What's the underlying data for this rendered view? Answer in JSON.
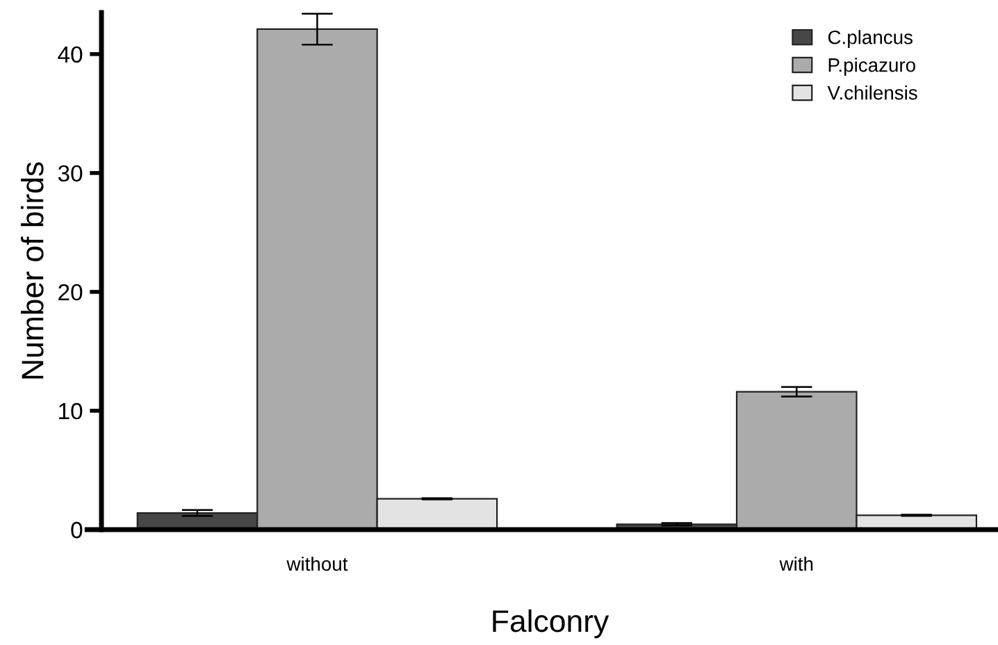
{
  "chart_data": {
    "type": "bar",
    "xlabel": "Falconry",
    "ylabel": "Number of birds",
    "categories": [
      "without",
      "with"
    ],
    "series": [
      {
        "name": "C.plancus",
        "color": "#474747",
        "values": [
          1.4,
          0.45
        ],
        "errors": [
          0.25,
          0.1
        ]
      },
      {
        "name": "P.picazuro",
        "color": "#ababab",
        "values": [
          42.1,
          11.6
        ],
        "errors": [
          1.3,
          0.4
        ]
      },
      {
        "name": "V.chilensis",
        "color": "#e3e3e3",
        "values": [
          2.6,
          1.2
        ],
        "errors": [
          0.05,
          0.05
        ]
      }
    ],
    "ylim": [
      0,
      43.5
    ],
    "yticks": [
      0,
      10,
      20,
      30,
      40
    ],
    "grid": false,
    "legend": "top right"
  }
}
